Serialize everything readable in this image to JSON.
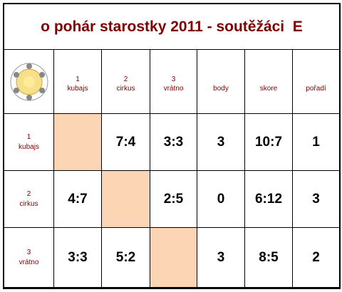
{
  "title": "o pohár starostky 2011 - soutěžáci  E",
  "table": {
    "header": [
      {
        "number": "1",
        "name": "kubajs"
      },
      {
        "number": "2",
        "name": "cirkus"
      },
      {
        "number": "3",
        "name": "vrátno"
      },
      "body",
      "skore",
      "pořadí"
    ],
    "rows": [
      {
        "number": "1",
        "name": "kubajs",
        "cells": [
          null,
          "7:4",
          "3:3",
          "3",
          "10:7",
          "1"
        ]
      },
      {
        "number": "2",
        "name": "cirkus",
        "cells": [
          "4:7",
          null,
          "2:5",
          "0",
          "6:12",
          "3"
        ]
      },
      {
        "number": "3",
        "name": "vrátno",
        "cells": [
          "3:3",
          "5:2",
          null,
          "3",
          "8:5",
          "2"
        ]
      }
    ]
  }
}
